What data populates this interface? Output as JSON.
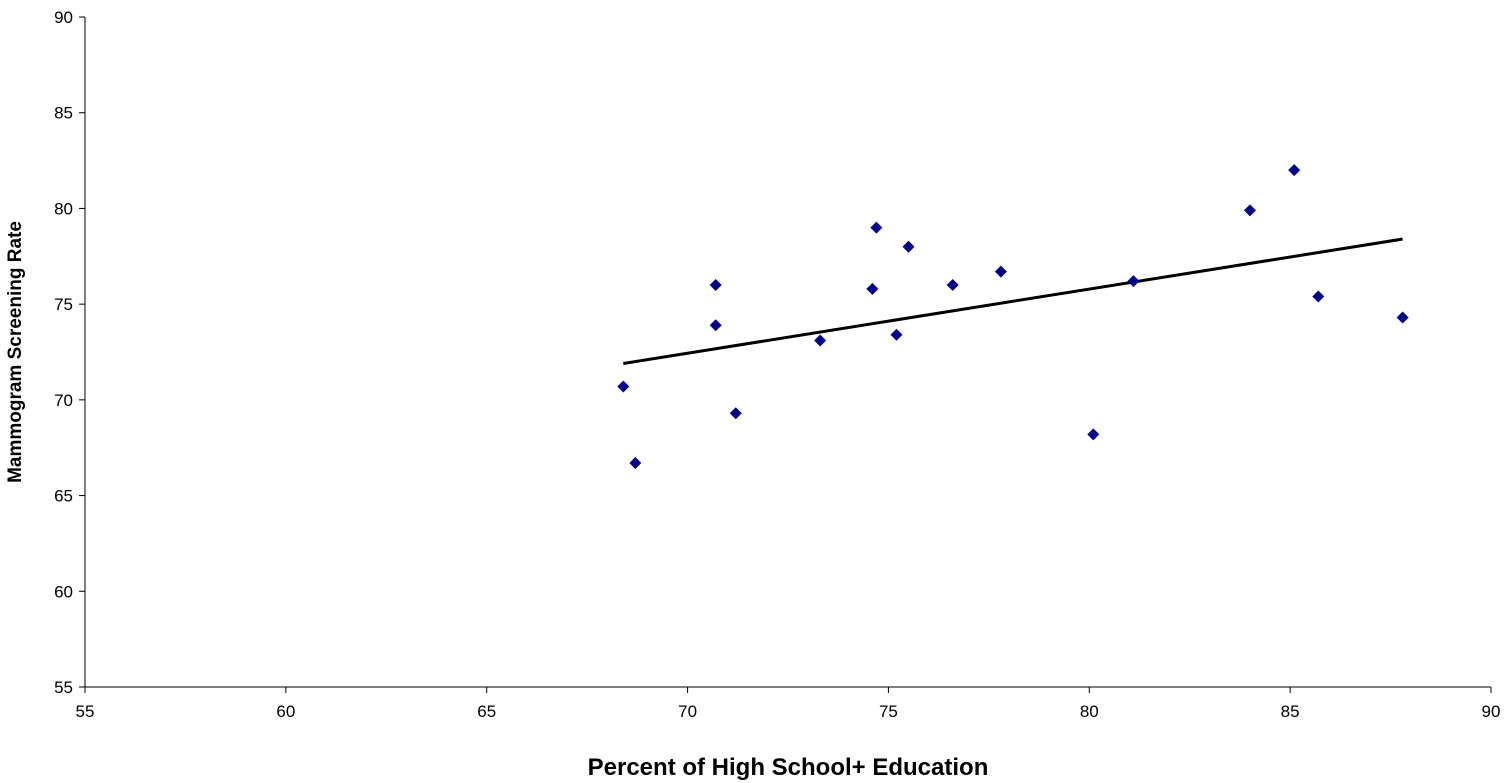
{
  "chart_data": {
    "type": "scatter",
    "title": "",
    "xlabel": "Percent of High School+ Education",
    "ylabel": "Mammogram Screening Rate",
    "xlim": [
      55,
      90
    ],
    "ylim": [
      55,
      90
    ],
    "x_ticks": [
      55,
      60,
      65,
      70,
      75,
      80,
      85,
      90
    ],
    "y_ticks": [
      55,
      60,
      65,
      70,
      75,
      80,
      85,
      90
    ],
    "grid": false,
    "legend": "none",
    "series": [
      {
        "marker": "diamond",
        "color": "#00008B",
        "points": [
          [
            68.4,
            70.7
          ],
          [
            68.7,
            66.7
          ],
          [
            70.7,
            76.0
          ],
          [
            70.7,
            73.9
          ],
          [
            71.2,
            69.3
          ],
          [
            73.3,
            73.1
          ],
          [
            74.6,
            75.8
          ],
          [
            74.7,
            79.0
          ],
          [
            75.2,
            73.4
          ],
          [
            75.5,
            78.0
          ],
          [
            76.6,
            76.0
          ],
          [
            77.8,
            76.7
          ],
          [
            80.1,
            68.2
          ],
          [
            81.1,
            76.2
          ],
          [
            84.0,
            79.9
          ],
          [
            85.1,
            82.0
          ],
          [
            85.7,
            75.4
          ],
          [
            87.8,
            74.3
          ]
        ]
      }
    ],
    "trendline": {
      "type": "linear",
      "color": "#000000",
      "x": [
        68.4,
        87.8
      ],
      "y": [
        71.9,
        78.4
      ]
    }
  }
}
